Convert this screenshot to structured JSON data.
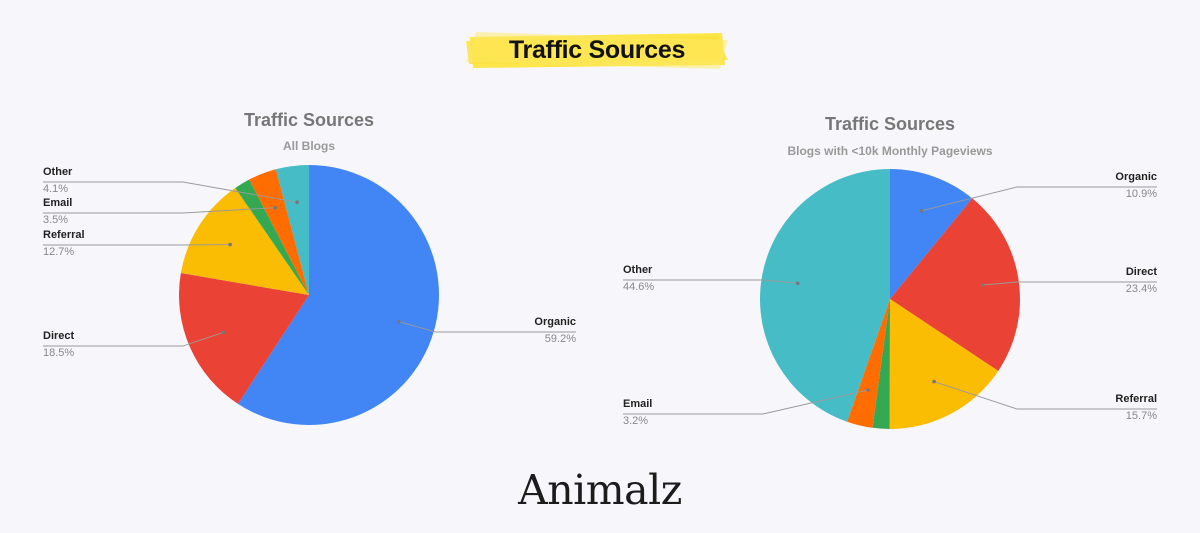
{
  "banner": {
    "title": "Traffic Sources"
  },
  "logo": {
    "text": "Animalz"
  },
  "colors": {
    "Organic": "#4285f4",
    "Direct": "#ea4335",
    "Referral": "#fbbc04",
    "Email": "#34a853",
    "Other_orange": "#ff6d01",
    "Other": "#46bdc6"
  },
  "chart_data": [
    {
      "type": "pie",
      "title": "Traffic Sources",
      "subtitle": "All Blogs",
      "slices": [
        {
          "label": "Organic",
          "value": 59.2,
          "display": "59.2%",
          "color": "#4285f4"
        },
        {
          "label": "Direct",
          "value": 18.5,
          "display": "18.5%",
          "color": "#ea4335"
        },
        {
          "label": "Referral",
          "value": 12.7,
          "display": "12.7%",
          "color": "#fbbc04"
        },
        {
          "label": "",
          "value": 2.0,
          "display": "",
          "color": "#34a853"
        },
        {
          "label": "Email",
          "value": 3.5,
          "display": "3.5%",
          "color": "#ff6d01"
        },
        {
          "label": "Other",
          "value": 4.1,
          "display": "4.1%",
          "color": "#46bdc6"
        }
      ],
      "legend": "labels-outside"
    },
    {
      "type": "pie",
      "title": "Traffic Sources",
      "subtitle": "Blogs with <10k Monthly Pageviews",
      "slices": [
        {
          "label": "Organic",
          "value": 10.9,
          "display": "10.9%",
          "color": "#4285f4"
        },
        {
          "label": "Direct",
          "value": 23.4,
          "display": "23.4%",
          "color": "#ea4335"
        },
        {
          "label": "Referral",
          "value": 15.7,
          "display": "15.7%",
          "color": "#fbbc04"
        },
        {
          "label": "",
          "value": 2.1,
          "display": "",
          "color": "#34a853"
        },
        {
          "label": "Email",
          "value": 3.2,
          "display": "3.2%",
          "color": "#ff6d01"
        },
        {
          "label": "Other",
          "value": 44.6,
          "display": "44.6%",
          "color": "#46bdc6"
        }
      ],
      "legend": "labels-outside"
    }
  ]
}
